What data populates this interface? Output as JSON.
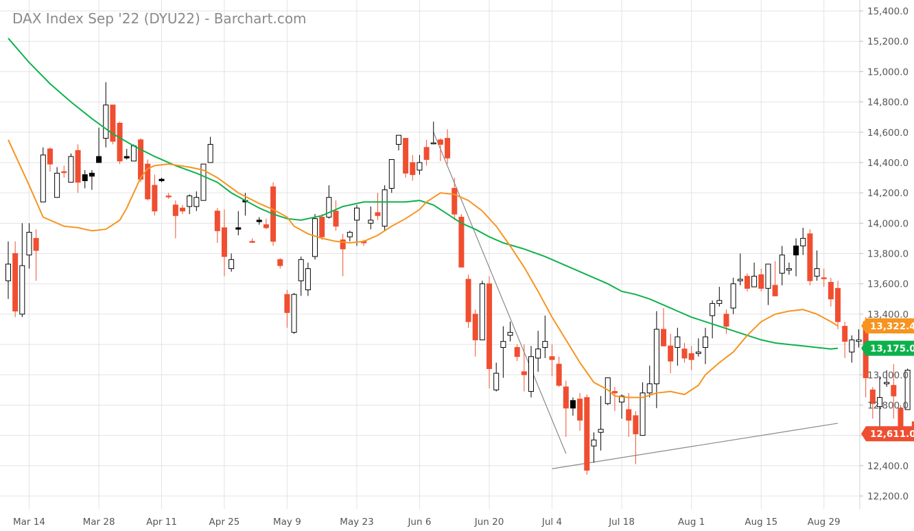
{
  "chart_data": {
    "type": "candlestick",
    "title": "DAX Index Sep '22 (DYU22) - Barchart.com",
    "y_axis": {
      "position": "right",
      "ylim": [
        12100,
        15450
      ],
      "ticks": [
        "15,400.0",
        "15,200.0",
        "15,000.0",
        "14,800.0",
        "14,600.0",
        "14,400.0",
        "14,200.0",
        "14,000.0",
        "13,800.0",
        "13,600.0",
        "13,400.0",
        "13,200.0",
        "13,000.0",
        "12,800.0",
        "12,600.0",
        "12,400.0",
        "12,200.0"
      ],
      "tick_values": [
        15400,
        15200,
        15000,
        14800,
        14600,
        14400,
        14200,
        14000,
        13800,
        13600,
        13400,
        13200,
        13000,
        12800,
        12600,
        12400,
        12200
      ]
    },
    "x_axis": {
      "labels": [
        "Mar 14",
        "Mar 28",
        "Apr 11",
        "Apr 25",
        "May 9",
        "May 23",
        "Jun 6",
        "Jun 20",
        "Jul 4",
        "Jul 18",
        "Aug 1",
        "Aug 15",
        "Aug 29"
      ],
      "label_index": [
        3,
        13,
        22,
        31,
        40,
        50,
        59,
        69,
        78,
        88,
        98,
        108,
        117
      ]
    },
    "grid": true,
    "colors": {
      "up": "#ffffff",
      "down": "#f04e30",
      "black": "#000000",
      "ma_short": "#f7931e",
      "ma_long": "#0db14b",
      "trend": "#888888"
    },
    "candles": [
      [
        13620,
        13880,
        13500,
        13730,
        "w"
      ],
      [
        13800,
        13880,
        13380,
        13420,
        "r"
      ],
      [
        13720,
        14000,
        13380,
        13400,
        "w"
      ],
      [
        13790,
        14000,
        13700,
        13940,
        "w"
      ],
      [
        13900,
        13960,
        13620,
        13820,
        "r"
      ],
      [
        14140,
        14500,
        14140,
        14450,
        "w"
      ],
      [
        14490,
        14500,
        14340,
        14390,
        "r"
      ],
      [
        14170,
        14370,
        14170,
        14330,
        "w"
      ],
      [
        14340,
        14380,
        14300,
        14340,
        "r"
      ],
      [
        14270,
        14460,
        14270,
        14440,
        "w"
      ],
      [
        14480,
        14520,
        14200,
        14270,
        "r"
      ],
      [
        14280,
        14350,
        14230,
        14320,
        "b"
      ],
      [
        14310,
        14350,
        14220,
        14330,
        "b"
      ],
      [
        14400,
        14630,
        14400,
        14440,
        "b"
      ],
      [
        14560,
        14930,
        14500,
        14780,
        "w"
      ],
      [
        14780,
        14780,
        14520,
        14540,
        "r"
      ],
      [
        14660,
        14670,
        14390,
        14410,
        "r"
      ],
      [
        14430,
        14490,
        14420,
        14440,
        "b"
      ],
      [
        14410,
        14520,
        14410,
        14510,
        "w"
      ],
      [
        14550,
        14560,
        14270,
        14290,
        "r"
      ],
      [
        14390,
        14420,
        14150,
        14160,
        "r"
      ],
      [
        14250,
        14320,
        14050,
        14080,
        "r"
      ],
      [
        14280,
        14300,
        14270,
        14290,
        "b"
      ],
      [
        14180,
        14200,
        14160,
        14180,
        "r"
      ],
      [
        14120,
        14150,
        13900,
        14050,
        "r"
      ],
      [
        14100,
        14120,
        14060,
        14080,
        "r"
      ],
      [
        14110,
        14190,
        14060,
        14180,
        "w"
      ],
      [
        14110,
        14210,
        14080,
        14170,
        "w"
      ],
      [
        14150,
        14390,
        14150,
        14390,
        "w"
      ],
      [
        14400,
        14570,
        14400,
        14520,
        "w"
      ],
      [
        14080,
        14100,
        13870,
        13950,
        "r"
      ],
      [
        13970,
        14090,
        13650,
        13780,
        "r"
      ],
      [
        13700,
        13800,
        13680,
        13760,
        "w"
      ],
      [
        13960,
        14080,
        13920,
        13970,
        "b"
      ],
      [
        14150,
        14200,
        14050,
        14140,
        "b"
      ],
      [
        13880,
        13900,
        13870,
        13880,
        "r"
      ],
      [
        14020,
        14040,
        13990,
        14010,
        "b"
      ],
      [
        13990,
        14030,
        13960,
        13970,
        "r"
      ],
      [
        14240,
        14270,
        13850,
        13880,
        "r"
      ],
      [
        13760,
        13770,
        13700,
        13720,
        "r"
      ],
      [
        13530,
        13560,
        13310,
        13410,
        "r"
      ],
      [
        13280,
        13540,
        13270,
        13530,
        "w"
      ],
      [
        13620,
        13780,
        13520,
        13760,
        "w"
      ],
      [
        13560,
        13740,
        13520,
        13700,
        "w"
      ],
      [
        13780,
        14060,
        13760,
        14030,
        "w"
      ],
      [
        14040,
        14060,
        13890,
        13910,
        "r"
      ],
      [
        14040,
        14250,
        14030,
        14170,
        "w"
      ],
      [
        14080,
        14150,
        13950,
        13980,
        "r"
      ],
      [
        13890,
        13930,
        13650,
        13830,
        "r"
      ],
      [
        13910,
        13950,
        13880,
        13940,
        "w"
      ],
      [
        14020,
        14120,
        13850,
        14100,
        "w"
      ],
      [
        13870,
        13890,
        13850,
        13880,
        "r"
      ],
      [
        14000,
        14110,
        13960,
        14020,
        "w"
      ],
      [
        14050,
        14200,
        14020,
        14070,
        "r"
      ],
      [
        13980,
        14250,
        13950,
        14220,
        "w"
      ],
      [
        14230,
        14420,
        14200,
        14420,
        "w"
      ],
      [
        14520,
        14580,
        14480,
        14580,
        "w"
      ],
      [
        14560,
        14560,
        14300,
        14330,
        "r"
      ],
      [
        14400,
        14450,
        14280,
        14320,
        "r"
      ],
      [
        14350,
        14450,
        14320,
        14400,
        "w"
      ],
      [
        14500,
        14550,
        14380,
        14420,
        "r"
      ],
      [
        14530,
        14670,
        14520,
        14530,
        "w"
      ],
      [
        14550,
        14560,
        14410,
        14520,
        "r"
      ],
      [
        14560,
        14620,
        14390,
        14430,
        "r"
      ],
      [
        14230,
        14300,
        14020,
        14060,
        "r"
      ],
      [
        14040,
        14060,
        13710,
        13710,
        "r"
      ],
      [
        13630,
        13660,
        13310,
        13350,
        "r"
      ],
      [
        13400,
        13430,
        13120,
        13230,
        "r"
      ],
      [
        13230,
        13620,
        13230,
        13600,
        "w"
      ],
      [
        13600,
        13650,
        12910,
        13040,
        "r"
      ],
      [
        12900,
        13080,
        12890,
        13010,
        "w"
      ],
      [
        13220,
        13320,
        12980,
        13180,
        "w"
      ],
      [
        13260,
        13350,
        13220,
        13280,
        "w"
      ],
      [
        13180,
        13200,
        13090,
        13120,
        "r"
      ],
      [
        13020,
        13200,
        12890,
        13000,
        "r"
      ],
      [
        12890,
        13190,
        12850,
        13120,
        "w"
      ],
      [
        13110,
        13290,
        13020,
        13170,
        "w"
      ],
      [
        13180,
        13390,
        13110,
        13220,
        "w"
      ],
      [
        13120,
        13200,
        12990,
        13100,
        "r"
      ],
      [
        13070,
        13120,
        12920,
        12930,
        "r"
      ],
      [
        12920,
        12960,
        12590,
        12780,
        "r"
      ],
      [
        12780,
        12850,
        12730,
        12830,
        "b"
      ],
      [
        12840,
        12880,
        12630,
        12700,
        "r"
      ],
      [
        12850,
        12870,
        12340,
        12370,
        "r"
      ],
      [
        12530,
        12620,
        12420,
        12570,
        "w"
      ],
      [
        12620,
        12860,
        12500,
        12640,
        "w"
      ],
      [
        12810,
        12980,
        12800,
        12980,
        "w"
      ],
      [
        12880,
        12920,
        12760,
        12890,
        "r"
      ],
      [
        12820,
        12870,
        12710,
        12860,
        "w"
      ],
      [
        12770,
        12880,
        12590,
        12700,
        "r"
      ],
      [
        12730,
        12760,
        12410,
        12610,
        "r"
      ],
      [
        12600,
        12950,
        12600,
        12880,
        "w"
      ],
      [
        12880,
        13060,
        12850,
        12940,
        "w"
      ],
      [
        12940,
        13420,
        12780,
        13300,
        "w"
      ],
      [
        13190,
        13440,
        13190,
        13300,
        "r"
      ],
      [
        13090,
        13270,
        13010,
        13190,
        "r"
      ],
      [
        13180,
        13310,
        13060,
        13250,
        "w"
      ],
      [
        13170,
        13210,
        13080,
        13110,
        "r"
      ],
      [
        13140,
        13190,
        13030,
        13100,
        "r"
      ],
      [
        13140,
        13240,
        13120,
        13150,
        "w"
      ],
      [
        13180,
        13310,
        13070,
        13250,
        "w"
      ],
      [
        13390,
        13490,
        13240,
        13470,
        "w"
      ],
      [
        13470,
        13580,
        13450,
        13490,
        "w"
      ],
      [
        13320,
        13430,
        13270,
        13400,
        "r"
      ],
      [
        13440,
        13640,
        13400,
        13600,
        "w"
      ],
      [
        13620,
        13800,
        13590,
        13630,
        "w"
      ],
      [
        13650,
        13670,
        13550,
        13570,
        "r"
      ],
      [
        13580,
        13740,
        13580,
        13650,
        "w"
      ],
      [
        13660,
        13700,
        13550,
        13570,
        "r"
      ],
      [
        13570,
        13730,
        13460,
        13730,
        "w"
      ],
      [
        13590,
        13750,
        13520,
        13520,
        "r"
      ],
      [
        13670,
        13850,
        13590,
        13790,
        "w"
      ],
      [
        13690,
        13740,
        13660,
        13700,
        "w"
      ],
      [
        13790,
        13900,
        13650,
        13850,
        "b"
      ],
      [
        13850,
        13970,
        13790,
        13900,
        "w"
      ],
      [
        13930,
        13960,
        13590,
        13620,
        "r"
      ],
      [
        13700,
        13820,
        13620,
        13650,
        "w"
      ],
      [
        13640,
        13700,
        13580,
        13640,
        "r"
      ],
      [
        13610,
        13640,
        13450,
        13500,
        "r"
      ],
      [
        13570,
        13620,
        13300,
        13350,
        "r"
      ],
      [
        13320,
        13350,
        13110,
        13220,
        "r"
      ],
      [
        13230,
        13260,
        13080,
        13150,
        "w"
      ],
      [
        13230,
        13300,
        13180,
        13220,
        "w"
      ],
      [
        13350,
        13380,
        12850,
        12980,
        "r"
      ],
      [
        12810,
        12920,
        12710,
        12900,
        "r"
      ],
      [
        12790,
        12990,
        12620,
        12850,
        "w"
      ],
      [
        12940,
        13030,
        12920,
        12950,
        "w"
      ],
      [
        12930,
        13070,
        12710,
        12860,
        "r"
      ],
      [
        12780,
        12800,
        12630,
        12630,
        "r"
      ],
      [
        12770,
        13040,
        12770,
        13030,
        "w"
      ],
      [
        12690,
        12720,
        12600,
        12611,
        "r"
      ]
    ],
    "ma_short": [
      [
        0,
        14550
      ],
      [
        3,
        14250
      ],
      [
        5,
        14040
      ],
      [
        8,
        13980
      ],
      [
        10,
        13970
      ],
      [
        12,
        13950
      ],
      [
        14,
        13960
      ],
      [
        16,
        14020
      ],
      [
        17,
        14100
      ],
      [
        18,
        14200
      ],
      [
        19,
        14300
      ],
      [
        20,
        14360
      ],
      [
        21,
        14380
      ],
      [
        23,
        14390
      ],
      [
        26,
        14370
      ],
      [
        28,
        14350
      ],
      [
        30,
        14300
      ],
      [
        33,
        14200
      ],
      [
        36,
        14130
      ],
      [
        38,
        14090
      ],
      [
        40,
        14040
      ],
      [
        41,
        13980
      ],
      [
        43,
        13930
      ],
      [
        45,
        13900
      ],
      [
        47,
        13880
      ],
      [
        49,
        13870
      ],
      [
        51,
        13880
      ],
      [
        53,
        13920
      ],
      [
        55,
        13980
      ],
      [
        57,
        14030
      ],
      [
        59,
        14090
      ],
      [
        60,
        14140
      ],
      [
        62,
        14200
      ],
      [
        64,
        14190
      ],
      [
        66,
        14150
      ],
      [
        68,
        14080
      ],
      [
        70,
        13980
      ],
      [
        72,
        13850
      ],
      [
        74,
        13710
      ],
      [
        76,
        13550
      ],
      [
        78,
        13380
      ],
      [
        80,
        13230
      ],
      [
        82,
        13080
      ],
      [
        84,
        12950
      ],
      [
        86,
        12900
      ],
      [
        87,
        12860
      ],
      [
        89,
        12850
      ],
      [
        91,
        12850
      ],
      [
        93,
        12880
      ],
      [
        95,
        12890
      ],
      [
        97,
        12870
      ],
      [
        99,
        12930
      ],
      [
        100,
        13000
      ],
      [
        102,
        13080
      ],
      [
        104,
        13150
      ],
      [
        106,
        13260
      ],
      [
        108,
        13350
      ],
      [
        110,
        13400
      ],
      [
        112,
        13420
      ],
      [
        114,
        13430
      ],
      [
        116,
        13400
      ],
      [
        118,
        13350
      ],
      [
        119,
        13322
      ]
    ],
    "ma_long": [
      [
        0,
        15220
      ],
      [
        3,
        15060
      ],
      [
        6,
        14920
      ],
      [
        9,
        14800
      ],
      [
        12,
        14690
      ],
      [
        15,
        14590
      ],
      [
        18,
        14510
      ],
      [
        21,
        14440
      ],
      [
        24,
        14380
      ],
      [
        27,
        14330
      ],
      [
        30,
        14270
      ],
      [
        32,
        14200
      ],
      [
        34,
        14150
      ],
      [
        36,
        14100
      ],
      [
        38,
        14060
      ],
      [
        40,
        14030
      ],
      [
        42,
        14020
      ],
      [
        45,
        14050
      ],
      [
        48,
        14110
      ],
      [
        51,
        14140
      ],
      [
        54,
        14140
      ],
      [
        57,
        14140
      ],
      [
        59,
        14150
      ],
      [
        61,
        14120
      ],
      [
        63,
        14060
      ],
      [
        65,
        14000
      ],
      [
        67,
        13960
      ],
      [
        69,
        13910
      ],
      [
        71,
        13870
      ],
      [
        74,
        13830
      ],
      [
        77,
        13780
      ],
      [
        80,
        13720
      ],
      [
        83,
        13660
      ],
      [
        86,
        13600
      ],
      [
        88,
        13550
      ],
      [
        90,
        13530
      ],
      [
        92,
        13500
      ],
      [
        94,
        13460
      ],
      [
        96,
        13420
      ],
      [
        98,
        13380
      ],
      [
        100,
        13350
      ],
      [
        102,
        13320
      ],
      [
        104,
        13290
      ],
      [
        106,
        13260
      ],
      [
        108,
        13230
      ],
      [
        110,
        13210
      ],
      [
        112,
        13200
      ],
      [
        114,
        13190
      ],
      [
        116,
        13180
      ],
      [
        118,
        13170
      ],
      [
        119,
        13175
      ]
    ],
    "trendlines": [
      {
        "from": [
          61,
          14600
        ],
        "to": [
          80,
          12480
        ]
      },
      {
        "from": [
          78,
          12380
        ],
        "to": [
          119,
          12680
        ]
      }
    ],
    "price_tags": [
      {
        "label": "13,322.4",
        "value": 13322.4,
        "color": "#f7931e"
      },
      {
        "label": "13,175.0",
        "value": 13175.0,
        "color": "#0db14b"
      },
      {
        "label": "12,611.0",
        "value": 12611.0,
        "color": "#f04e30"
      }
    ]
  }
}
